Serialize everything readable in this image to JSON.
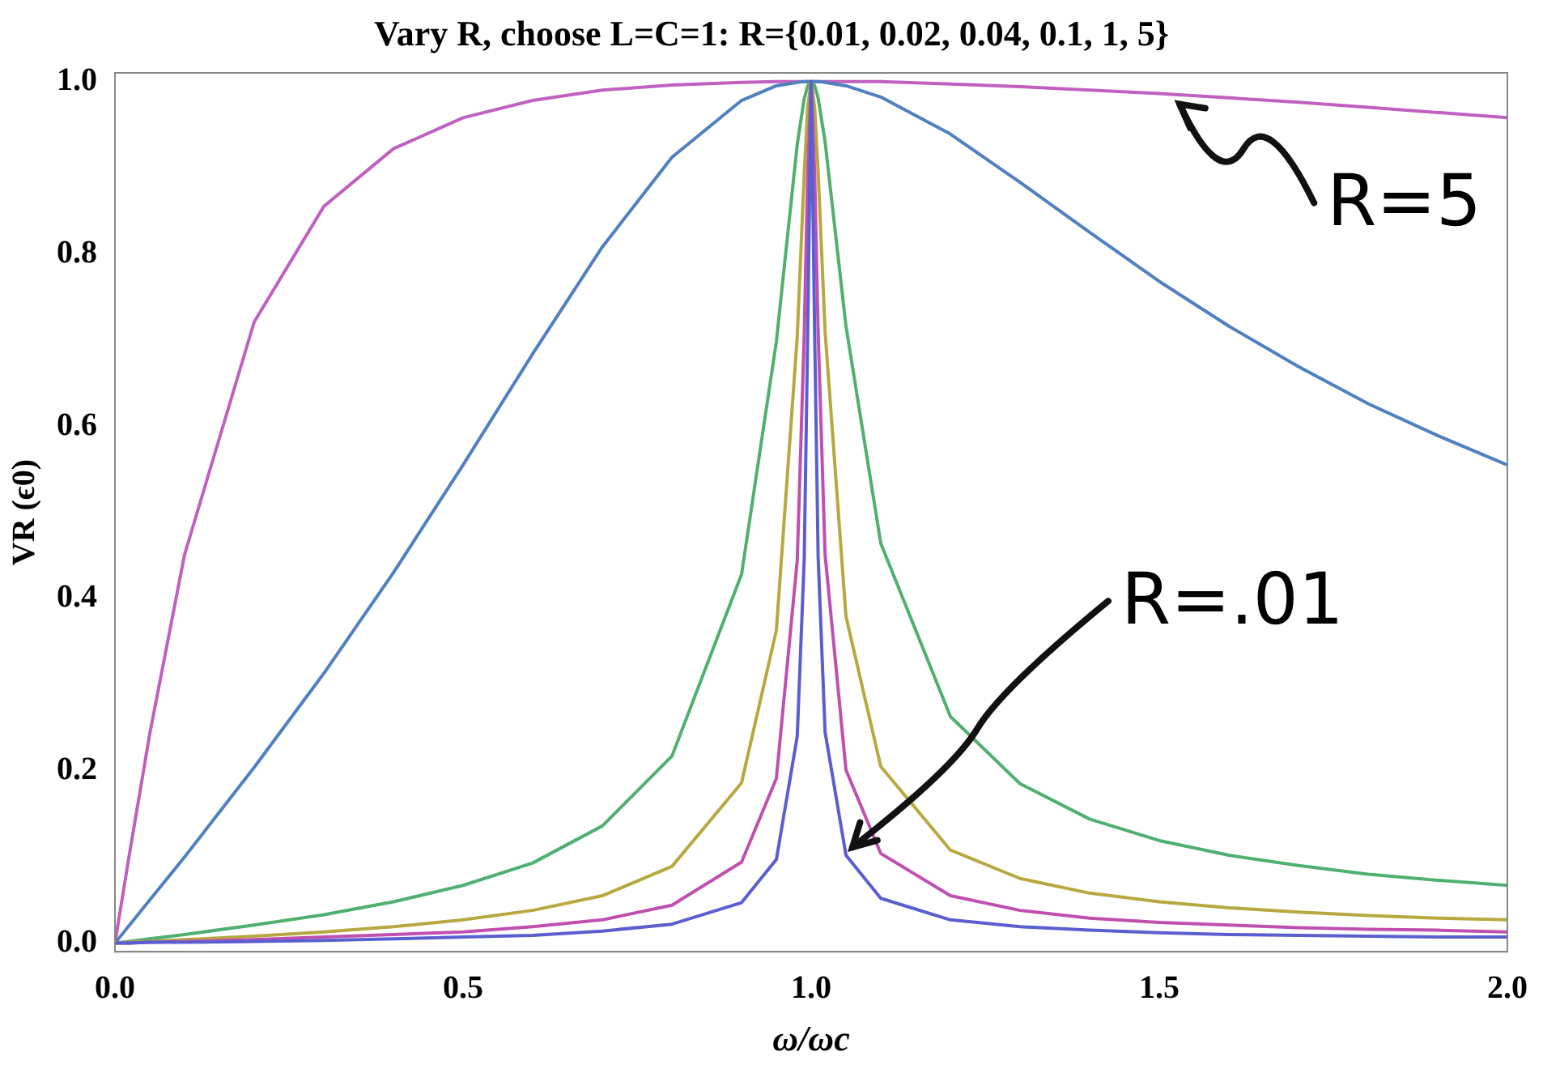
{
  "chart_data": {
    "type": "line",
    "title": "Vary R, choose L=C=1: R={0.01, 0.02, 0.04, 0.1, 1, 5}",
    "xlabel": "ω/ωc",
    "ylabel": "VR (ϵ0)",
    "x": [
      0,
      0.02,
      0.05,
      0.1,
      0.2,
      0.3,
      0.4,
      0.5,
      0.6,
      0.7,
      0.8,
      0.9,
      0.95,
      0.98,
      0.99,
      0.995,
      1,
      1.005,
      1.01,
      1.02,
      1.05,
      1.1,
      1.2,
      1.3,
      1.4,
      1.5,
      1.6,
      1.7,
      1.8,
      1.9,
      2
    ],
    "series": [
      {
        "color": "#5a5fd0",
        "values": [
          0,
          0,
          0.001,
          0.001,
          0.002,
          0.003,
          0.005,
          0.007,
          0.009,
          0.014,
          0.022,
          0.047,
          0.097,
          0.24,
          0.445,
          0.706,
          1,
          0.708,
          0.449,
          0.245,
          0.102,
          0.052,
          0.027,
          0.019,
          0.015,
          0.012,
          0.01,
          0.009,
          0.008,
          0.007,
          0.007
        ]
      },
      {
        "color": "#c050b0",
        "values": [
          0,
          0,
          0.001,
          0.002,
          0.004,
          0.007,
          0.01,
          0.013,
          0.019,
          0.027,
          0.044,
          0.094,
          0.191,
          0.444,
          0.705,
          0.894,
          1,
          0.895,
          0.709,
          0.451,
          0.201,
          0.104,
          0.055,
          0.038,
          0.029,
          0.024,
          0.021,
          0.018,
          0.016,
          0.015,
          0.013
        ]
      },
      {
        "color": "#b8a840",
        "values": [
          0,
          0.001,
          0.002,
          0.004,
          0.008,
          0.013,
          0.019,
          0.027,
          0.038,
          0.055,
          0.089,
          0.186,
          0.363,
          0.704,
          0.893,
          0.97,
          1,
          0.97,
          0.895,
          0.71,
          0.379,
          0.205,
          0.108,
          0.075,
          0.058,
          0.048,
          0.041,
          0.036,
          0.032,
          0.029,
          0.027
        ]
      },
      {
        "color": "#50b070",
        "values": [
          0,
          0.002,
          0.005,
          0.01,
          0.021,
          0.033,
          0.048,
          0.067,
          0.093,
          0.136,
          0.217,
          0.428,
          0.698,
          0.927,
          0.98,
          0.995,
          1,
          0.995,
          0.981,
          0.93,
          0.716,
          0.464,
          0.263,
          0.185,
          0.144,
          0.119,
          0.102,
          0.09,
          0.08,
          0.073,
          0.067
        ]
      },
      {
        "color": "#5080c0",
        "values": [
          0,
          0.02,
          0.05,
          0.1,
          0.204,
          0.313,
          0.43,
          0.555,
          0.684,
          0.808,
          0.912,
          0.978,
          0.995,
          0.999,
          1,
          1,
          1,
          1,
          1,
          0.999,
          0.995,
          0.982,
          0.939,
          0.883,
          0.825,
          0.768,
          0.716,
          0.669,
          0.626,
          0.589,
          0.555
        ]
      },
      {
        "color": "#c060c0",
        "values": [
          0,
          0.0995,
          0.243,
          0.451,
          0.721,
          0.855,
          0.922,
          0.958,
          0.978,
          0.99,
          0.996,
          0.999,
          1,
          1,
          1,
          1,
          1,
          1,
          1,
          1,
          1,
          1,
          0.997,
          0.994,
          0.99,
          0.986,
          0.981,
          0.976,
          0.97,
          0.964,
          0.958
        ]
      }
    ],
    "xlim": [
      0,
      2
    ],
    "ylim": [
      -0.01,
      1.01
    ],
    "xticks": [
      {
        "value": 0,
        "label": "0.0"
      },
      0.5,
      {
        "value": 1,
        "label": "1.0"
      },
      1.5,
      {
        "value": 2,
        "label": "2.0"
      }
    ],
    "yticks": [
      {
        "value": 0,
        "label": "0.0"
      },
      0.2,
      0.4,
      0.6,
      0.8,
      {
        "value": 1,
        "label": "1.0"
      }
    ],
    "grid": false,
    "legend": false,
    "marker": "none",
    "line_style": "solid",
    "annotations": [
      {
        "text": "R=5",
        "x": 1.52,
        "y": 0.985
      },
      {
        "text": "R=.01",
        "x": 1.05,
        "y": 0.1
      }
    ]
  }
}
